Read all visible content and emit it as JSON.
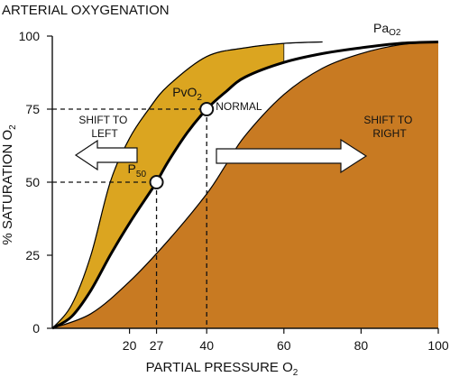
{
  "chart_data": {
    "type": "line",
    "title": "ARTERIAL OXYGENATION",
    "xlabel": "PARTIAL PRESSURE O",
    "xlabel_sub": "2",
    "ylabel": "% SATURATION O",
    "ylabel_sub": "2",
    "xlim": [
      0,
      100
    ],
    "ylim": [
      0,
      100
    ],
    "xticks": [
      20,
      27,
      40,
      60,
      80,
      100
    ],
    "yticks": [
      0,
      25,
      50,
      75,
      100
    ],
    "grid": false,
    "series": [
      {
        "name": "NORMAL",
        "x": [
          0,
          5,
          10,
          15,
          20,
          25,
          27,
          30,
          35,
          40,
          45,
          50,
          60,
          70,
          80,
          90,
          100
        ],
        "y": [
          0,
          4,
          13,
          25,
          36,
          46,
          50,
          57,
          67,
          75,
          81,
          86,
          91,
          94,
          96,
          97.5,
          98
        ]
      },
      {
        "name": "SHIFT TO LEFT",
        "x": [
          0,
          5,
          10,
          15,
          20,
          25,
          30,
          40,
          50,
          60,
          70
        ],
        "y": [
          0,
          8,
          25,
          50,
          65,
          75,
          83,
          93,
          96,
          97.5,
          98
        ]
      },
      {
        "name": "SHIFT TO RIGHT",
        "x": [
          0,
          10,
          20,
          30,
          40,
          45,
          50,
          60,
          70,
          80,
          90,
          100
        ],
        "y": [
          0,
          5,
          16,
          30,
          46,
          56,
          66,
          80,
          89,
          94,
          97,
          98
        ]
      }
    ],
    "points": [
      {
        "label": "P",
        "label_sub": "50",
        "x": 27,
        "y": 50
      },
      {
        "label": "PvO",
        "label_sub": "2",
        "x": 40,
        "y": 75,
        "tag": "NORMAL"
      }
    ],
    "annotations": {
      "shift_left": [
        "SHIFT TO",
        "LEFT"
      ],
      "shift_right": [
        "SHIFT TO",
        "RIGHT"
      ],
      "pao2": "Pa",
      "pao2_sub": "O2"
    },
    "colors": {
      "shift_right_fill": "#c87a22",
      "shift_left_fill": "#dba520",
      "curve": "#000000",
      "arrow_fill": "#ffffff"
    }
  }
}
